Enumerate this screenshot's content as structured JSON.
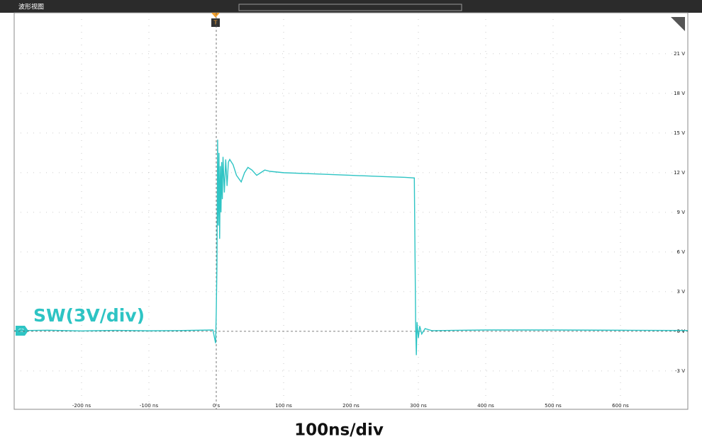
{
  "chart_data": {
    "type": "line",
    "window_title": "波形视图",
    "channel_label": "SW(3V/div)",
    "x_scale_label": "100ns/div",
    "channel_marker": "C2",
    "trigger_marker": "T",
    "xlim": [
      -300,
      700
    ],
    "ylim": [
      -5.9,
      24.1
    ],
    "xticks": [
      {
        "value": -200,
        "label": "-200 ns"
      },
      {
        "value": -100,
        "label": "-100 ns"
      },
      {
        "value": 0,
        "label": "0 s"
      },
      {
        "value": 100,
        "label": "100 ns"
      },
      {
        "value": 200,
        "label": "200 ns"
      },
      {
        "value": 300,
        "label": "300 ns"
      },
      {
        "value": 400,
        "label": "400 ns"
      },
      {
        "value": 500,
        "label": "500 ns"
      },
      {
        "value": 600,
        "label": "600 ns"
      }
    ],
    "yticks": [
      {
        "value": -3,
        "label": "-3 V"
      },
      {
        "value": 0,
        "label": "0 V"
      },
      {
        "value": 3,
        "label": "3 V"
      },
      {
        "value": 6,
        "label": "6 V"
      },
      {
        "value": 9,
        "label": "9 V"
      },
      {
        "value": 12,
        "label": "12 V"
      },
      {
        "value": 15,
        "label": "15 V"
      },
      {
        "value": 18,
        "label": "18 V"
      },
      {
        "value": 21,
        "label": "21 V"
      }
    ],
    "grid": true,
    "x": [
      -300,
      -250,
      -200,
      -150,
      -100,
      -50,
      -5,
      -1,
      0,
      1,
      2,
      3,
      4,
      5,
      6,
      7,
      8,
      9,
      10,
      12,
      14,
      16,
      18,
      20,
      25,
      30,
      37,
      42,
      47,
      53,
      60,
      66,
      72,
      80,
      100,
      150,
      200,
      250,
      280,
      294,
      295,
      296,
      297,
      298,
      300,
      302,
      305,
      310,
      320,
      400,
      500,
      600,
      700
    ],
    "series": [
      {
        "color": "#2ec4c4",
        "values": [
          0.05,
          0.08,
          0.03,
          0.07,
          0.04,
          0.06,
          0.1,
          -0.9,
          1.5,
          5,
          14.5,
          8,
          13.5,
          7,
          12.5,
          9,
          12.8,
          10,
          13.2,
          10.5,
          13,
          11,
          12.8,
          13.0,
          12.6,
          11.8,
          11.3,
          12.0,
          12.4,
          12.2,
          11.8,
          12.0,
          12.2,
          12.1,
          12.0,
          11.9,
          11.8,
          11.7,
          11.65,
          11.6,
          6,
          0.5,
          -1.8,
          0.7,
          -0.5,
          0.4,
          -0.2,
          0.2,
          0.05,
          0.1,
          0.1,
          0.08,
          0.06
        ]
      }
    ]
  }
}
